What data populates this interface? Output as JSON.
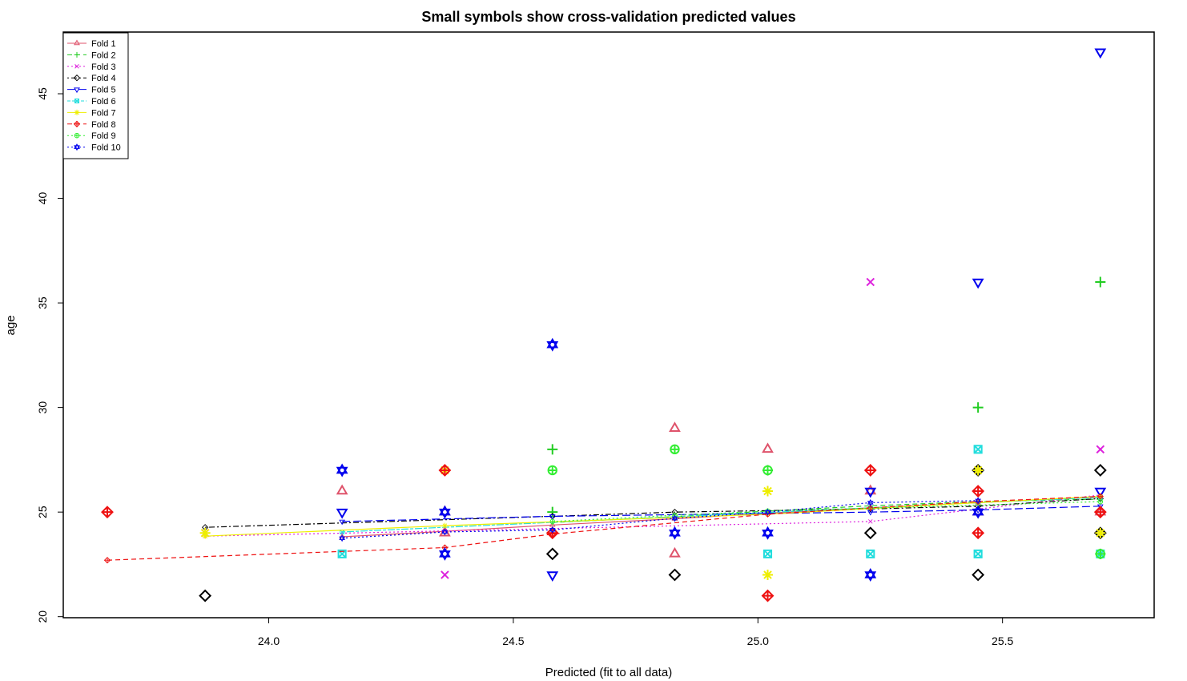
{
  "chart_data": {
    "type": "scatter",
    "title": "Small symbols show cross-validation predicted values",
    "xlabel": "Predicted (fit to all data)",
    "ylabel": "age",
    "xlim": [
      23.58,
      25.81
    ],
    "ylim": [
      19.95,
      47.95
    ],
    "x_ticks": [
      "24.0",
      "24.5",
      "25.0",
      "25.5"
    ],
    "x_tick_values": [
      24.0,
      24.5,
      25.0,
      25.5
    ],
    "y_ticks": [
      "20",
      "25",
      "30",
      "35",
      "40",
      "45"
    ],
    "y_tick_values": [
      20,
      25,
      30,
      35,
      40,
      45
    ],
    "grid": false,
    "legend_position": "top-left",
    "series": [
      {
        "name": "Fold 1",
        "color": "#DF536B",
        "symbol": "triangle-up",
        "dash": "solid",
        "observed": [
          [
            24.15,
            26
          ],
          [
            24.36,
            24
          ],
          [
            24.36,
            25
          ],
          [
            24.83,
            29
          ],
          [
            24.83,
            23
          ],
          [
            25.02,
            28
          ],
          [
            25.23,
            26
          ],
          [
            25.45,
            25
          ],
          [
            25.7,
            25
          ]
        ],
        "cv_line": [
          [
            24.15,
            23.82
          ],
          [
            24.36,
            24.08
          ],
          [
            24.58,
            24.38
          ],
          [
            24.83,
            24.68
          ],
          [
            25.02,
            24.95
          ],
          [
            25.23,
            25.2
          ],
          [
            25.45,
            25.45
          ],
          [
            25.7,
            25.72
          ]
        ]
      },
      {
        "name": "Fold 2",
        "color": "#22CC22",
        "symbol": "plus",
        "dash": "dashed",
        "observed": [
          [
            24.58,
            28
          ],
          [
            24.58,
            25
          ],
          [
            25.02,
            27
          ],
          [
            25.45,
            30
          ],
          [
            25.7,
            36
          ],
          [
            25.7,
            23
          ]
        ],
        "cv_line": [
          [
            24.58,
            24.5
          ],
          [
            24.83,
            24.78
          ],
          [
            25.02,
            25.05
          ],
          [
            25.23,
            25.3
          ],
          [
            25.45,
            25.5
          ],
          [
            25.7,
            25.62
          ]
        ]
      },
      {
        "name": "Fold 3",
        "color": "#DD22DD",
        "symbol": "cross",
        "dash": "dotted",
        "observed": [
          [
            23.87,
            24
          ],
          [
            24.36,
            22
          ],
          [
            25.23,
            36
          ],
          [
            25.7,
            28
          ]
        ],
        "cv_line": [
          [
            23.87,
            23.85
          ],
          [
            24.36,
            24.1
          ],
          [
            25.23,
            24.55
          ],
          [
            25.7,
            25.82
          ]
        ]
      },
      {
        "name": "Fold 4",
        "color": "#000000",
        "symbol": "diamond",
        "dash": "dotdash",
        "observed": [
          [
            23.87,
            21
          ],
          [
            24.58,
            23
          ],
          [
            24.83,
            22
          ],
          [
            25.23,
            24
          ],
          [
            25.45,
            27
          ],
          [
            25.45,
            22
          ],
          [
            25.7,
            27
          ],
          [
            25.7,
            24
          ]
        ],
        "cv_line": [
          [
            23.87,
            24.27
          ],
          [
            24.58,
            24.8
          ],
          [
            24.83,
            25.0
          ],
          [
            25.23,
            25.15
          ],
          [
            25.45,
            25.28
          ],
          [
            25.7,
            25.65
          ]
        ]
      },
      {
        "name": "Fold 5",
        "color": "#0000EE",
        "symbol": "triangle-down",
        "dash": "longdash",
        "observed": [
          [
            24.15,
            25
          ],
          [
            24.58,
            22
          ],
          [
            25.23,
            26
          ],
          [
            25.45,
            36
          ],
          [
            25.7,
            47
          ],
          [
            25.7,
            26
          ]
        ],
        "cv_line": [
          [
            24.15,
            24.55
          ],
          [
            24.58,
            24.8
          ],
          [
            25.23,
            25.0
          ],
          [
            25.45,
            25.1
          ],
          [
            25.7,
            25.28
          ]
        ]
      },
      {
        "name": "Fold 6",
        "color": "#22DDDD",
        "symbol": "square-x",
        "dash": "twodash",
        "observed": [
          [
            24.15,
            23
          ],
          [
            25.02,
            23
          ],
          [
            25.23,
            23
          ],
          [
            25.45,
            28
          ],
          [
            25.45,
            23
          ],
          [
            25.7,
            23
          ]
        ],
        "cv_line": [
          [
            24.15,
            24.05
          ],
          [
            25.02,
            24.98
          ],
          [
            25.23,
            25.2
          ],
          [
            25.45,
            25.45
          ],
          [
            25.7,
            25.7
          ]
        ]
      },
      {
        "name": "Fold 7",
        "color": "#EEEE00",
        "symbol": "asterisk",
        "dash": "solid",
        "observed": [
          [
            23.87,
            24
          ],
          [
            24.36,
            27
          ],
          [
            25.02,
            26
          ],
          [
            25.02,
            22
          ],
          [
            25.45,
            27
          ],
          [
            25.7,
            24
          ]
        ],
        "cv_line": [
          [
            23.87,
            23.85
          ],
          [
            24.36,
            24.35
          ],
          [
            25.02,
            24.9
          ],
          [
            25.45,
            25.45
          ],
          [
            25.7,
            25.75
          ]
        ]
      },
      {
        "name": "Fold 8",
        "color": "#EE1111",
        "symbol": "diamond-plus",
        "dash": "dashed",
        "observed": [
          [
            23.67,
            25
          ],
          [
            24.36,
            27
          ],
          [
            24.58,
            24
          ],
          [
            25.02,
            21
          ],
          [
            25.23,
            27
          ],
          [
            25.45,
            26
          ],
          [
            25.45,
            24
          ],
          [
            25.7,
            25
          ]
        ],
        "cv_line": [
          [
            23.67,
            22.7
          ],
          [
            24.36,
            23.3
          ],
          [
            24.58,
            23.95
          ],
          [
            25.02,
            24.9
          ],
          [
            25.23,
            25.2
          ],
          [
            25.45,
            25.5
          ],
          [
            25.7,
            25.75
          ]
        ]
      },
      {
        "name": "Fold 9",
        "color": "#33EE33",
        "symbol": "circle-plus",
        "dash": "dotted",
        "observed": [
          [
            24.58,
            27
          ],
          [
            24.83,
            28
          ],
          [
            25.02,
            27
          ],
          [
            25.7,
            23
          ]
        ],
        "cv_line": [
          [
            24.58,
            24.55
          ],
          [
            24.83,
            24.85
          ],
          [
            25.02,
            25.05
          ],
          [
            25.7,
            25.5
          ]
        ]
      },
      {
        "name": "Fold 10",
        "color": "#0000EE",
        "symbol": "star-of-david",
        "dash": "dotted",
        "observed": [
          [
            24.15,
            27
          ],
          [
            24.36,
            25
          ],
          [
            24.36,
            23
          ],
          [
            24.58,
            33
          ],
          [
            24.83,
            24
          ],
          [
            25.02,
            24
          ],
          [
            25.23,
            22
          ],
          [
            25.45,
            25
          ]
        ],
        "cv_line": [
          [
            24.15,
            23.75
          ],
          [
            24.36,
            24.05
          ],
          [
            24.58,
            24.15
          ],
          [
            24.83,
            24.7
          ],
          [
            25.02,
            25.0
          ],
          [
            25.23,
            25.45
          ],
          [
            25.45,
            25.55
          ]
        ]
      }
    ]
  }
}
